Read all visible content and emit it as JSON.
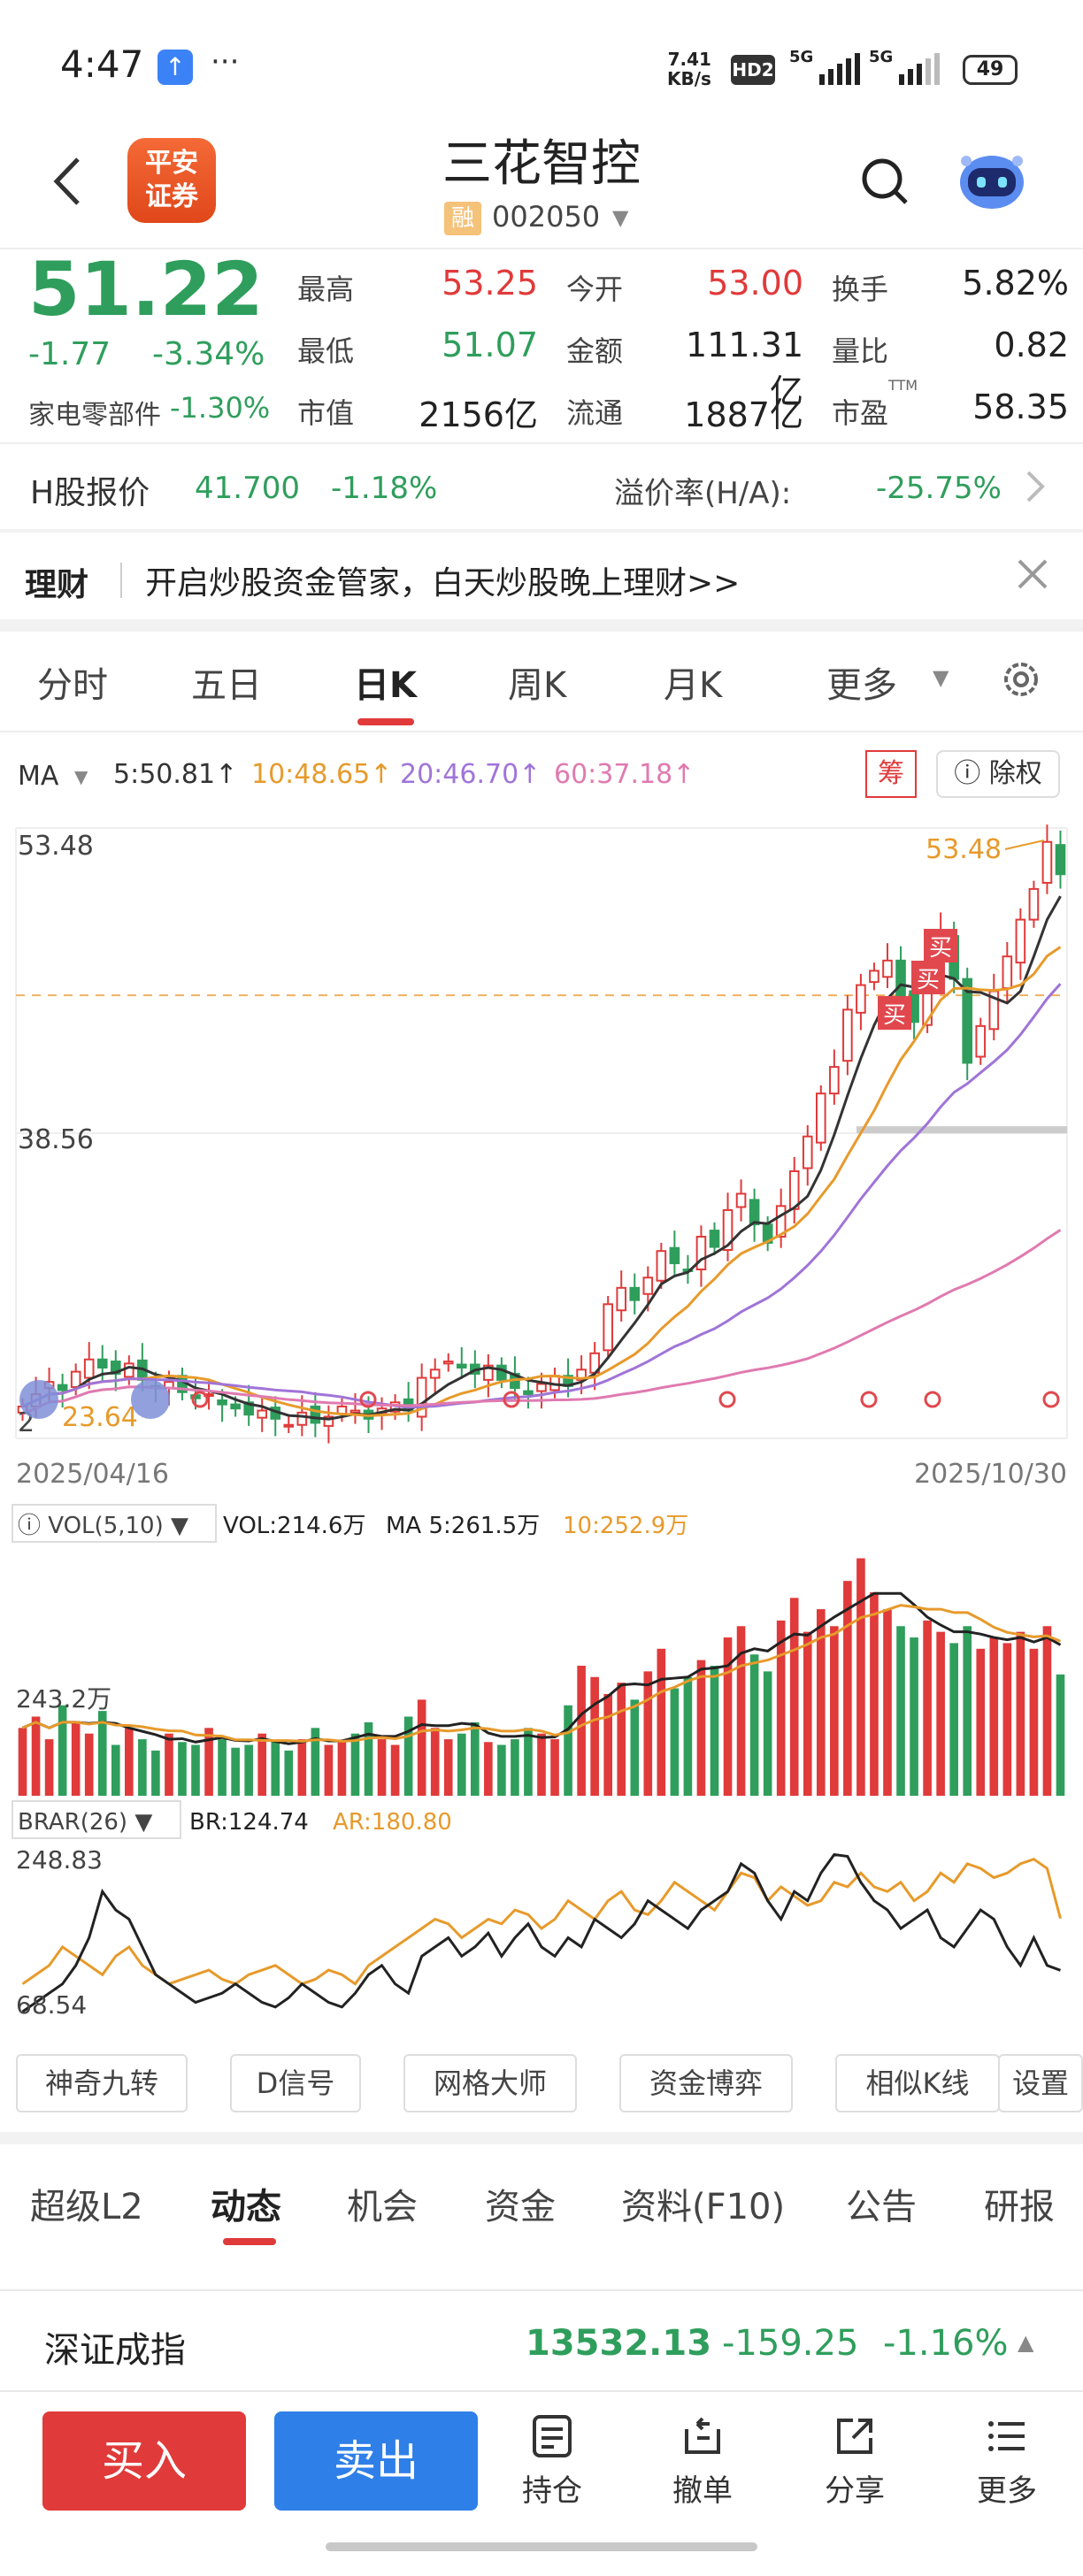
{
  "status_bar": {
    "time": "4:47",
    "dots": "···",
    "net_speed_top": "7.41",
    "net_speed_unit": "KB/s",
    "hd": "HD2",
    "sig1": "5G",
    "sig2": "5G",
    "battery": "49"
  },
  "header": {
    "name": "三花智控",
    "rong": "融",
    "code": "002050",
    "logo_line1": "平安",
    "logo_line2": "证券"
  },
  "quote": {
    "price": "51.22",
    "change": "-1.77",
    "change_pct": "-3.34%",
    "sector": "家电零部件",
    "sector_pct": "-1.30%",
    "fields": [
      {
        "label": "最高",
        "value": "53.25",
        "color": "red"
      },
      {
        "label": "今开",
        "value": "53.00",
        "color": "red"
      },
      {
        "label": "换手",
        "value": "5.82%",
        "color": "normal"
      },
      {
        "label": "最低",
        "value": "51.07",
        "color": "green"
      },
      {
        "label": "金额",
        "value": "111.31亿",
        "color": "normal"
      },
      {
        "label": "量比",
        "value": "0.82",
        "color": "normal"
      },
      {
        "label": "市值",
        "value": "2156亿",
        "color": "normal"
      },
      {
        "label": "流通",
        "value": "1887亿",
        "color": "normal"
      },
      {
        "label": "市盈",
        "value": "58.35",
        "color": "normal"
      }
    ],
    "ttm": "TTM"
  },
  "hshare": {
    "label": "H股报价",
    "price": "41.700",
    "pct": "-1.18%",
    "premium_label": "溢价率(H/A):",
    "premium": "-25.75%"
  },
  "licai": {
    "title": "理财",
    "text": "开启炒股资金管家，白天炒股晚上理财>>"
  },
  "period_tabs": [
    "分时",
    "五日",
    "日K",
    "周K",
    "月K",
    "更多"
  ],
  "ma_legend": {
    "label": "MA",
    "ma5": "5:50.81↑",
    "ma10": "10:48.65↑",
    "ma20": "20:46.70↑",
    "ma60": "60:37.18↑",
    "chip": "筹",
    "fq": "除权"
  },
  "chart_data": {
    "type": "candlestick",
    "y_top_label": "53.48",
    "y_mid_label": "38.56",
    "y_low_label": "23.64",
    "y_bottom_label_partial": "2",
    "high_marker": "53.48",
    "buy_marker": "买",
    "x_start": "2025/04/16",
    "x_end": "2025/10/30",
    "ylim": [
      23.64,
      53.48
    ],
    "close_series": [
      25.2,
      25.8,
      26.4,
      26.0,
      26.9,
      27.5,
      27.1,
      26.8,
      27.3,
      26.5,
      26.1,
      26.4,
      25.9,
      25.6,
      25.8,
      25.3,
      25.1,
      24.8,
      25.0,
      24.6,
      24.3,
      24.9,
      24.4,
      24.7,
      25.2,
      25.0,
      24.6,
      25.1,
      25.4,
      25.0,
      26.6,
      27.0,
      27.4,
      27.1,
      26.8,
      27.2,
      26.5,
      26.1,
      25.8,
      26.3,
      26.7,
      26.2,
      27.0,
      27.8,
      30.2,
      31.0,
      30.4,
      31.5,
      32.8,
      32.2,
      31.9,
      33.5,
      33.0,
      34.8,
      35.6,
      34.1,
      33.2,
      35.0,
      36.7,
      38.4,
      40.5,
      41.8,
      44.6,
      45.8,
      46.5,
      47.0,
      45.2,
      44.0,
      46.8,
      48.5,
      46.1,
      42.0,
      43.8,
      45.5,
      47.2,
      49.0,
      50.5,
      52.8,
      51.22
    ],
    "vol_label": "VOL(5,10)",
    "vol_value": "VOL:214.6万",
    "vol_ma5": "MA 5:261.5万",
    "vol_ma10": "10:252.9万",
    "vol_axis_label": "243.2万",
    "volumes": [
      120,
      140,
      100,
      160,
      130,
      110,
      150,
      90,
      120,
      100,
      80,
      110,
      95,
      90,
      120,
      100,
      85,
      90,
      110,
      95,
      80,
      100,
      120,
      90,
      95,
      110,
      130,
      100,
      90,
      140,
      170,
      120,
      100,
      110,
      130,
      95,
      90,
      100,
      120,
      110,
      100,
      160,
      230,
      210,
      180,
      200,
      170,
      220,
      260,
      190,
      210,
      240,
      230,
      280,
      300,
      250,
      220,
      310,
      350,
      290,
      330,
      300,
      380,
      420,
      360,
      330,
      300,
      280,
      310,
      290,
      270,
      300,
      260,
      280,
      270,
      290,
      260,
      300,
      214.6
    ],
    "brar_label": "BRAR(26)",
    "br_value": "BR:124.74",
    "ar_value": "AR:180.80",
    "brar_top": "248.83",
    "brar_bottom": "68.54",
    "br_series": [
      80,
      90,
      100,
      110,
      130,
      160,
      210,
      190,
      180,
      150,
      120,
      110,
      100,
      90,
      95,
      100,
      110,
      100,
      90,
      85,
      95,
      110,
      100,
      90,
      85,
      100,
      120,
      130,
      110,
      100,
      140,
      150,
      160,
      140,
      150,
      165,
      140,
      160,
      175,
      150,
      140,
      160,
      150,
      180,
      170,
      160,
      175,
      200,
      190,
      180,
      170,
      190,
      200,
      210,
      240,
      230,
      200,
      180,
      210,
      200,
      230,
      250,
      248,
      220,
      200,
      190,
      170,
      180,
      190,
      160,
      150,
      170,
      190,
      180,
      150,
      130,
      160,
      130,
      124.74
    ],
    "ar_series": [
      110,
      120,
      130,
      150,
      140,
      130,
      120,
      140,
      150,
      130,
      120,
      110,
      115,
      120,
      125,
      115,
      110,
      120,
      125,
      130,
      120,
      110,
      115,
      125,
      120,
      110,
      130,
      140,
      150,
      160,
      170,
      180,
      175,
      160,
      170,
      180,
      175,
      190,
      185,
      170,
      180,
      200,
      190,
      180,
      200,
      210,
      190,
      185,
      200,
      220,
      210,
      200,
      190,
      210,
      230,
      225,
      200,
      215,
      205,
      195,
      200,
      220,
      215,
      230,
      215,
      210,
      220,
      200,
      210,
      230,
      220,
      240,
      235,
      225,
      230,
      240,
      245,
      235,
      180.8
    ]
  },
  "tools": [
    "神奇九转",
    "D信号",
    "网格大师",
    "资金博弈",
    "相似K线",
    "设置"
  ],
  "bottom_tabs": [
    "超级L2",
    "动态",
    "机会",
    "资金",
    "资料(F10)",
    "公告",
    "研报"
  ],
  "index_bar": {
    "name": "深证成指",
    "value": "13532.13",
    "change": "-159.25",
    "pct": "-1.16%"
  },
  "actions": {
    "buy": "买入",
    "sell": "卖出",
    "position": "持仓",
    "cancel": "撤单",
    "share": "分享",
    "more": "更多"
  }
}
